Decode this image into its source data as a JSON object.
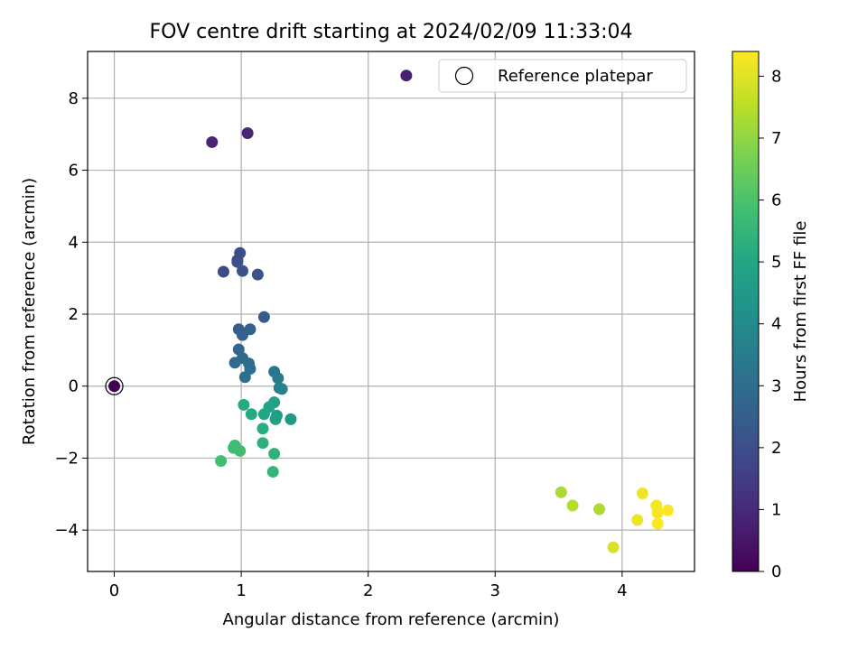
{
  "chart_data": {
    "type": "scatter",
    "title": "FOV centre drift starting at 2024/02/09 11:33:04",
    "xlabel": "Angular distance from reference (arcmin)",
    "ylabel": "Rotation from reference (arcmin)",
    "xlim": [
      -0.21,
      4.57
    ],
    "ylim": [
      -5.15,
      9.3
    ],
    "xticks": [
      0,
      1,
      2,
      3,
      4
    ],
    "yticks": [
      -4,
      -2,
      0,
      2,
      4,
      6,
      8
    ],
    "xtick_labels": [
      "0",
      "1",
      "2",
      "3",
      "4"
    ],
    "ytick_labels": [
      "−4",
      "−2",
      "0",
      "2",
      "4",
      "6",
      "8"
    ],
    "grid": true,
    "legend": {
      "position": "top-right",
      "entries": [
        "Reference platepar"
      ]
    },
    "reference_point": {
      "x": 0,
      "y": 0,
      "hours": 0
    },
    "colorbar": {
      "label": "Hours from first FF file",
      "range": [
        0,
        8.4
      ],
      "ticks": [
        0,
        1,
        2,
        3,
        4,
        5,
        6,
        7,
        8
      ],
      "tick_labels": [
        "0",
        "1",
        "2",
        "3",
        "4",
        "5",
        "6",
        "7",
        "8"
      ],
      "colormap": "viridis"
    },
    "points": [
      {
        "x": 2.3,
        "y": 8.63,
        "hours": 0.75
      },
      {
        "x": 0.77,
        "y": 6.78,
        "hours": 0.85
      },
      {
        "x": 1.05,
        "y": 7.03,
        "hours": 0.9
      },
      {
        "x": 0.86,
        "y": 3.18,
        "hours": 1.9
      },
      {
        "x": 0.99,
        "y": 3.7,
        "hours": 1.95
      },
      {
        "x": 0.97,
        "y": 3.5,
        "hours": 2.0
      },
      {
        "x": 0.97,
        "y": 3.45,
        "hours": 2.05
      },
      {
        "x": 1.01,
        "y": 3.2,
        "hours": 2.1
      },
      {
        "x": 1.13,
        "y": 3.1,
        "hours": 2.15
      },
      {
        "x": 1.18,
        "y": 1.92,
        "hours": 2.4
      },
      {
        "x": 0.98,
        "y": 1.58,
        "hours": 2.5
      },
      {
        "x": 1.07,
        "y": 1.58,
        "hours": 2.55
      },
      {
        "x": 1.01,
        "y": 1.42,
        "hours": 2.6
      },
      {
        "x": 0.98,
        "y": 1.02,
        "hours": 2.75
      },
      {
        "x": 1.01,
        "y": 0.78,
        "hours": 2.85
      },
      {
        "x": 0.95,
        "y": 0.65,
        "hours": 2.9
      },
      {
        "x": 1.06,
        "y": 0.63,
        "hours": 3.0
      },
      {
        "x": 1.07,
        "y": 0.48,
        "hours": 3.05
      },
      {
        "x": 1.03,
        "y": 0.25,
        "hours": 3.1
      },
      {
        "x": 1.26,
        "y": 0.4,
        "hours": 3.3
      },
      {
        "x": 1.29,
        "y": 0.22,
        "hours": 3.4
      },
      {
        "x": 1.3,
        "y": -0.05,
        "hours": 3.6
      },
      {
        "x": 1.32,
        "y": -0.08,
        "hours": 3.7
      },
      {
        "x": 1.39,
        "y": -0.92,
        "hours": 4.5
      },
      {
        "x": 1.28,
        "y": -0.82,
        "hours": 4.6
      },
      {
        "x": 1.27,
        "y": -0.92,
        "hours": 4.7
      },
      {
        "x": 1.26,
        "y": -0.45,
        "hours": 4.8
      },
      {
        "x": 1.22,
        "y": -0.58,
        "hours": 4.9
      },
      {
        "x": 1.18,
        "y": -0.78,
        "hours": 5.0
      },
      {
        "x": 1.02,
        "y": -0.52,
        "hours": 5.1
      },
      {
        "x": 1.08,
        "y": -0.78,
        "hours": 5.15
      },
      {
        "x": 1.17,
        "y": -1.18,
        "hours": 5.2
      },
      {
        "x": 1.17,
        "y": -1.58,
        "hours": 5.3
      },
      {
        "x": 1.26,
        "y": -1.88,
        "hours": 5.4
      },
      {
        "x": 1.25,
        "y": -2.38,
        "hours": 5.5
      },
      {
        "x": 0.95,
        "y": -1.65,
        "hours": 5.7
      },
      {
        "x": 0.94,
        "y": -1.72,
        "hours": 5.75
      },
      {
        "x": 0.99,
        "y": -1.8,
        "hours": 5.8
      },
      {
        "x": 0.84,
        "y": -2.08,
        "hours": 5.85
      },
      {
        "x": 3.52,
        "y": -2.95,
        "hours": 7.3
      },
      {
        "x": 3.61,
        "y": -3.32,
        "hours": 7.45
      },
      {
        "x": 3.82,
        "y": -3.42,
        "hours": 7.35
      },
      {
        "x": 3.93,
        "y": -4.48,
        "hours": 7.9
      },
      {
        "x": 4.12,
        "y": -3.72,
        "hours": 8.15
      },
      {
        "x": 4.16,
        "y": -2.98,
        "hours": 8.2
      },
      {
        "x": 4.27,
        "y": -3.32,
        "hours": 8.25
      },
      {
        "x": 4.28,
        "y": -3.52,
        "hours": 8.3
      },
      {
        "x": 4.28,
        "y": -3.82,
        "hours": 8.35
      },
      {
        "x": 4.36,
        "y": -3.45,
        "hours": 8.4
      }
    ]
  }
}
